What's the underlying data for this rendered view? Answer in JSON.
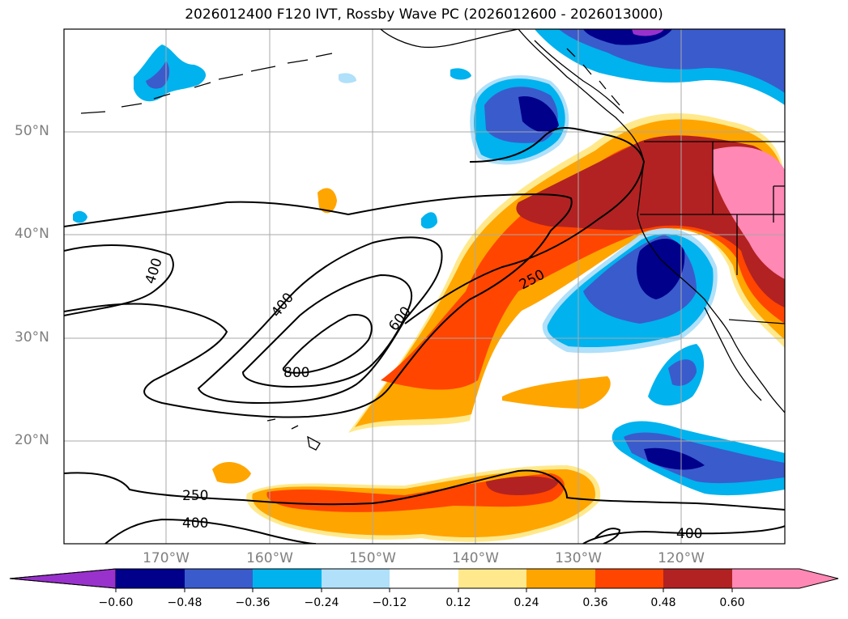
{
  "title": "2026012400 F120 IVT, Rossby Wave PC (2026012600 - 2026013000)",
  "map": {
    "lat_labels": [
      "50°N",
      "40°N",
      "30°N",
      "20°N"
    ],
    "lon_labels": [
      "170°W",
      "160°W",
      "150°W",
      "140°W",
      "130°W",
      "120°W"
    ],
    "contour_labels": [
      "400",
      "400",
      "600",
      "800",
      "250",
      "250",
      "400",
      "400"
    ]
  },
  "colorbar": {
    "ticks": [
      "−0.60",
      "−0.48",
      "−0.36",
      "−0.24",
      "−0.12",
      "0.12",
      "0.24",
      "0.36",
      "0.48",
      "0.60"
    ],
    "colors": [
      "#9932cc",
      "#00008b",
      "#3a5bcc",
      "#00b2ee",
      "#b0e0fa",
      "#ffffff",
      "#ffe98c",
      "#ffa500",
      "#ff4500",
      "#b22222",
      "#ff88b4",
      "#ff88b4"
    ]
  },
  "palette": {
    "neg_deep": "#00008b",
    "neg_mid": "#3a5bcc",
    "neg_light": "#00b2ee",
    "neg_pale": "#b0e0fa",
    "pos_pale": "#ffe98c",
    "pos_light": "#ffa500",
    "pos_mid": "#ff4500",
    "pos_deep": "#b22222",
    "pos_max": "#ff88b4"
  }
}
